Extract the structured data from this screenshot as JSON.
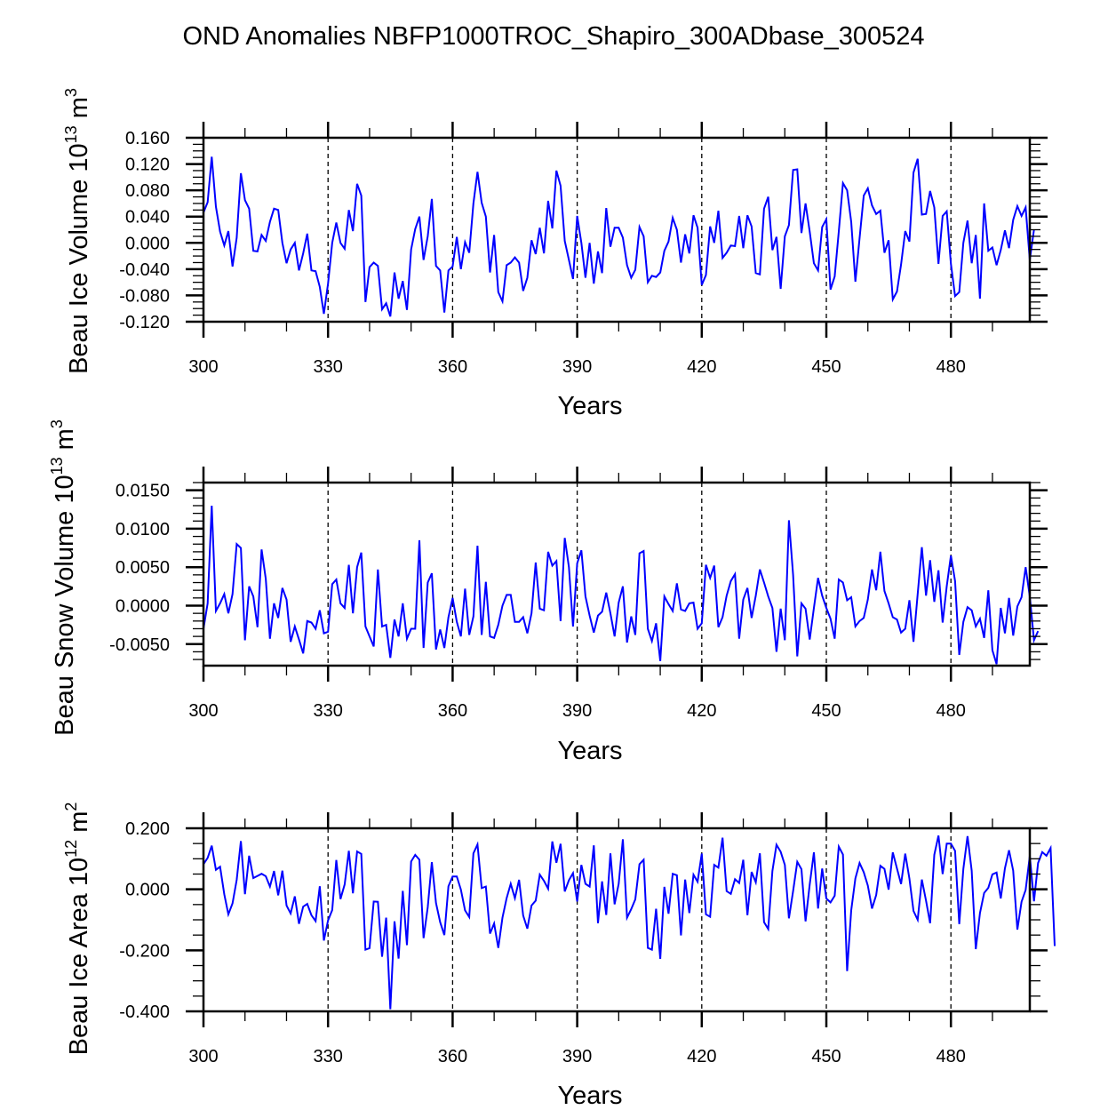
{
  "title": "OND Anomalies NBFP1000TROC_Shapiro_300ADbase_300524",
  "chart_data": [
    {
      "type": "line",
      "title": "OND Anomalies NBFP1000TROC_Shapiro_300ADbase_300524",
      "xlabel": "Years",
      "ylabel": "Beau Ice Volume 10^13 m^3",
      "ylabel_main": "Beau Ice Volume 10",
      "ylabel_exp": "13",
      "ylabel_unit": " m",
      "ylabel_unit_exp": "3",
      "xlim": [
        300,
        499
      ],
      "ylim": [
        -0.12,
        0.16
      ],
      "yticks": [
        0.16,
        0.12,
        0.08,
        0.04,
        0.0,
        -0.04,
        -0.08,
        -0.12
      ],
      "ytick_labels": [
        "0.160",
        "0.120",
        "0.080",
        "0.040",
        "0.000",
        "-0.040",
        "-0.080",
        "-0.120"
      ],
      "yminor_per_major": 4,
      "xticks": [
        300,
        330,
        360,
        390,
        420,
        450,
        480
      ],
      "xtick_labels": [
        "300",
        "330",
        "360",
        "390",
        "420",
        "450",
        "480"
      ],
      "xminor_step": 10,
      "reference_lines_x": [
        330,
        360,
        390,
        420,
        450,
        480
      ],
      "grid": false,
      "x_start": 300,
      "series": [
        {
          "name": "Beau Ice Volume",
          "color": "#0000ff",
          "values": [
            0.046,
            0.062,
            0.131,
            0.055,
            0.017,
            -0.004,
            0.018,
            -0.036,
            0.008,
            0.106,
            0.065,
            0.052,
            -0.012,
            -0.013,
            0.012,
            0.003,
            0.032,
            0.052,
            0.05,
            0.0,
            -0.031,
            -0.01,
            0.0,
            -0.042,
            -0.016,
            0.014,
            -0.042,
            -0.043,
            -0.067,
            -0.108,
            -0.062,
            0.0,
            0.031,
            0.0,
            -0.009,
            0.05,
            0.018,
            0.09,
            0.072,
            -0.09,
            -0.037,
            -0.03,
            -0.035,
            -0.101,
            -0.092,
            -0.112,
            -0.045,
            -0.085,
            -0.058,
            -0.102,
            -0.01,
            0.021,
            0.04,
            -0.026,
            0.01,
            0.067,
            -0.035,
            -0.042,
            -0.106,
            -0.042,
            -0.036,
            0.009,
            -0.04,
            0.001,
            -0.015,
            0.06,
            0.108,
            0.061,
            0.04,
            -0.045,
            0.012,
            -0.075,
            -0.089,
            -0.034,
            -0.03,
            -0.022,
            -0.03,
            -0.073,
            -0.053,
            0.004,
            -0.017,
            0.023,
            -0.016,
            0.064,
            0.022,
            0.11,
            0.087,
            0.003,
            -0.026,
            -0.055,
            0.041,
            0.0,
            -0.053,
            0.0,
            -0.062,
            -0.013,
            -0.046,
            0.053,
            -0.006,
            0.023,
            0.023,
            0.008,
            -0.034,
            -0.053,
            -0.041,
            0.024,
            0.01,
            -0.06,
            -0.05,
            -0.052,
            -0.045,
            -0.012,
            0.002,
            0.038,
            0.02,
            -0.03,
            0.013,
            -0.016,
            0.042,
            0.023,
            -0.064,
            -0.049,
            0.025,
            0.0,
            0.049,
            -0.023,
            -0.015,
            -0.004,
            -0.005,
            0.041,
            -0.008,
            0.042,
            0.025,
            -0.046,
            -0.048,
            0.052,
            0.07,
            -0.011,
            0.009,
            -0.07,
            0.01,
            0.027,
            0.111,
            0.112,
            0.015,
            0.06,
            0.017,
            -0.031,
            -0.042,
            0.024,
            0.036,
            -0.071,
            -0.051,
            0.017,
            0.091,
            0.08,
            0.032,
            -0.059,
            0.007,
            0.072,
            0.083,
            0.057,
            0.044,
            0.049,
            -0.015,
            0.004,
            -0.086,
            -0.074,
            -0.033,
            0.018,
            0.002,
            0.107,
            0.128,
            0.043,
            0.044,
            0.079,
            0.054,
            -0.032,
            0.041,
            0.048,
            -0.032,
            -0.081,
            -0.075,
            0.0,
            0.034,
            -0.031,
            0.012,
            -0.085,
            0.06,
            -0.012,
            -0.007,
            -0.034,
            -0.011,
            0.019,
            -0.008,
            0.035,
            0.056,
            0.041,
            0.054,
            -0.026,
            0.02
          ]
        }
      ]
    },
    {
      "type": "line",
      "xlabel": "Years",
      "ylabel": "Beau Snow Volume 10^13 m^3",
      "ylabel_main": "Beau Snow Volume 10",
      "ylabel_exp": "13",
      "ylabel_unit": " m",
      "ylabel_unit_exp": "3",
      "xlim": [
        300,
        499
      ],
      "ylim": [
        -0.0078,
        0.016
      ],
      "yticks": [
        0.015,
        0.01,
        0.005,
        0.0,
        -0.005
      ],
      "ytick_labels": [
        "0.0150",
        "0.0100",
        "0.0050",
        "0.0000",
        "-0.0050"
      ],
      "yminor_per_major": 5,
      "xticks": [
        300,
        330,
        360,
        390,
        420,
        450,
        480
      ],
      "xtick_labels": [
        "300",
        "330",
        "360",
        "390",
        "420",
        "450",
        "480"
      ],
      "xminor_step": 10,
      "reference_lines_x": [
        330,
        360,
        390,
        420,
        450,
        480
      ],
      "grid": false,
      "x_start": 300,
      "series": [
        {
          "name": "Beau Snow Volume",
          "color": "#0000ff",
          "values": [
            -0.003,
            0.0003,
            0.013,
            -0.0007,
            0.0003,
            0.0015,
            -0.001,
            0.0015,
            0.008,
            0.0075,
            -0.0045,
            0.0025,
            0.0012,
            -0.0028,
            0.0073,
            0.0035,
            -0.0043,
            0.0003,
            -0.0016,
            0.0023,
            0.0008,
            -0.0047,
            -0.0027,
            -0.0044,
            -0.0062,
            -0.002,
            -0.0022,
            -0.003,
            -0.0006,
            -0.0036,
            -0.0034,
            0.0028,
            0.0034,
            0.0003,
            -0.0003,
            0.0053,
            -0.001,
            0.005,
            0.0069,
            -0.0027,
            -0.004,
            -0.0053,
            0.0047,
            -0.0027,
            -0.0025,
            -0.0068,
            -0.0018,
            -0.004,
            0.0003,
            -0.0043,
            -0.003,
            -0.003,
            0.0085,
            -0.0055,
            0.003,
            0.0042,
            -0.0057,
            -0.0031,
            -0.0055,
            -0.0015,
            0.001,
            -0.0021,
            -0.004,
            0.0022,
            -0.0038,
            -0.0014,
            0.0078,
            -0.0038,
            0.0031,
            -0.004,
            -0.0042,
            -0.0025,
            0.0,
            0.0014,
            0.0014,
            -0.0021,
            -0.0021,
            -0.0015,
            -0.0036,
            -0.001,
            0.0056,
            -0.0004,
            -0.0006,
            0.007,
            0.0052,
            0.0058,
            -0.002,
            0.0088,
            0.005,
            -0.0027,
            0.0055,
            0.0072,
            0.0012,
            -0.0013,
            -0.0035,
            -0.0013,
            -0.0008,
            0.0017,
            -0.001,
            -0.004,
            0.0004,
            0.0025,
            -0.0048,
            -0.0014,
            -0.0038,
            0.0068,
            0.0071,
            -0.003,
            -0.0046,
            -0.0023,
            -0.0072,
            0.0012,
            0.0002,
            -0.0007,
            0.0029,
            -0.0005,
            -0.0007,
            0.0003,
            0.0004,
            -0.003,
            -0.0023,
            0.0053,
            0.0036,
            0.0052,
            -0.0028,
            -0.0015,
            0.0013,
            0.0032,
            0.0041,
            -0.0043,
            0.0008,
            0.0023,
            -0.0016,
            0.0013,
            0.0047,
            0.003,
            0.0012,
            -0.0003,
            -0.006,
            -0.0004,
            -0.0045,
            0.0111,
            0.004,
            -0.0066,
            0.0003,
            -0.0004,
            -0.0044,
            -0.0003,
            0.0036,
            0.0013,
            -0.0003,
            -0.0017,
            -0.0043,
            0.0034,
            0.003,
            0.0007,
            0.0011,
            -0.0027,
            -0.002,
            -0.0016,
            0.0008,
            0.0047,
            0.002,
            0.007,
            0.0019,
            0.0003,
            -0.0015,
            -0.0018,
            -0.0035,
            -0.003,
            0.0007,
            -0.0047,
            0.0015,
            0.0076,
            0.0013,
            0.0059,
            0.0005,
            0.0046,
            -0.0022,
            0.0025,
            0.0065,
            0.0032,
            -0.0064,
            -0.0021,
            -0.0002,
            -0.0006,
            -0.0027,
            -0.0017,
            -0.0042,
            0.002,
            -0.0058,
            -0.0076,
            -0.0003,
            -0.0036,
            0.001,
            -0.0039,
            -0.0001,
            0.0011,
            0.005,
            0.0012,
            -0.0045,
            -0.0033
          ]
        }
      ]
    },
    {
      "type": "line",
      "xlabel": "Years",
      "ylabel": "Beau Ice Area 10^12 m^2",
      "ylabel_main": "Beau Ice Area 10",
      "ylabel_exp": "12",
      "ylabel_unit": " m",
      "ylabel_unit_exp": "2",
      "xlim": [
        300,
        499
      ],
      "ylim": [
        -0.4,
        0.2
      ],
      "yticks": [
        0.2,
        0.0,
        -0.2,
        -0.4
      ],
      "ytick_labels": [
        "0.200",
        "0.000",
        "-0.200",
        "-0.400"
      ],
      "yminor_per_major": 4,
      "xticks": [
        300,
        330,
        360,
        390,
        420,
        450,
        480
      ],
      "xtick_labels": [
        "300",
        "330",
        "360",
        "390",
        "420",
        "450",
        "480"
      ],
      "xminor_step": 10,
      "reference_lines_x": [
        330,
        360,
        390,
        420,
        450,
        480
      ],
      "grid": false,
      "x_start": 300,
      "series": [
        {
          "name": "Beau Ice Area",
          "color": "#0000ff",
          "values": [
            0.082,
            0.103,
            0.143,
            0.064,
            0.074,
            -0.016,
            -0.082,
            -0.046,
            0.031,
            0.158,
            -0.016,
            0.11,
            0.037,
            0.044,
            0.051,
            0.043,
            0.009,
            0.06,
            -0.02,
            0.061,
            -0.053,
            -0.079,
            -0.023,
            -0.113,
            -0.057,
            -0.048,
            -0.085,
            -0.104,
            0.01,
            -0.168,
            -0.102,
            -0.068,
            0.096,
            -0.032,
            0.016,
            0.126,
            -0.013,
            0.124,
            0.116,
            -0.198,
            -0.193,
            -0.04,
            -0.041,
            -0.221,
            -0.093,
            -0.393,
            -0.105,
            -0.227,
            -0.005,
            -0.183,
            0.091,
            0.113,
            0.097,
            -0.16,
            -0.059,
            0.089,
            -0.045,
            -0.108,
            -0.15,
            0.01,
            0.042,
            0.042,
            -0.001,
            -0.069,
            -0.091,
            0.118,
            0.147,
            0.004,
            0.009,
            -0.145,
            -0.112,
            -0.192,
            -0.093,
            -0.029,
            0.018,
            -0.029,
            0.031,
            -0.086,
            -0.129,
            -0.053,
            -0.037,
            0.048,
            0.028,
            0.002,
            0.157,
            0.087,
            0.149,
            -0.007,
            0.03,
            0.053,
            -0.04,
            0.08,
            0.018,
            0.009,
            0.144,
            -0.111,
            0.026,
            -0.084,
            0.118,
            -0.049,
            0.018,
            0.164,
            -0.093,
            -0.065,
            -0.033,
            0.082,
            0.097,
            -0.192,
            -0.198,
            -0.064,
            -0.228,
            0.008,
            -0.08,
            0.051,
            0.046,
            -0.151,
            0.032,
            -0.078,
            0.048,
            0.025,
            0.117,
            -0.082,
            -0.09,
            0.08,
            0.071,
            0.169,
            -0.006,
            -0.015,
            0.033,
            0.021,
            0.097,
            -0.085,
            0.057,
            0.023,
            0.118,
            -0.108,
            -0.13,
            0.06,
            0.146,
            0.123,
            0.08,
            -0.095,
            -0.006,
            0.09,
            0.066,
            -0.105,
            0.016,
            0.121,
            -0.063,
            0.068,
            -0.03,
            -0.043,
            -0.021,
            0.14,
            0.114,
            -0.268,
            -0.069,
            0.036,
            0.086,
            0.056,
            0.012,
            -0.063,
            -0.019,
            0.077,
            0.067,
            -0.001,
            0.121,
            0.068,
            0.017,
            0.117,
            0.035,
            -0.071,
            -0.1,
            0.032,
            -0.037,
            -0.111,
            0.113,
            0.176,
            0.05,
            0.15,
            0.15,
            0.126,
            -0.114,
            0.067,
            0.174,
            0.061,
            -0.196,
            -0.078,
            -0.012,
            0.005,
            0.049,
            0.055,
            -0.03,
            0.069,
            0.128,
            0.061,
            -0.132,
            -0.041,
            -0.002,
            0.109,
            -0.039,
            0.086,
            0.122,
            0.11,
            0.135,
            -0.186
          ]
        }
      ]
    }
  ]
}
